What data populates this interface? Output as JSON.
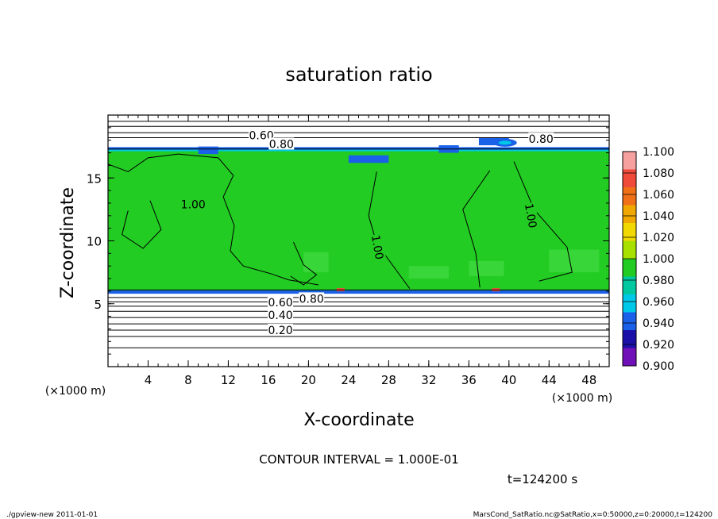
{
  "chart_data": {
    "type": "heatmap",
    "title": "saturation ratio",
    "xlabel": "X-coordinate",
    "ylabel": "Z-coordinate",
    "x_unit": "(×1000 m)",
    "z_unit": "(×1000 m)",
    "xlim": [
      0,
      50
    ],
    "zlim": [
      0,
      20
    ],
    "x_ticks": [
      4,
      8,
      12,
      16,
      20,
      24,
      28,
      32,
      36,
      40,
      44,
      48
    ],
    "z_ticks": [
      5,
      10,
      15
    ],
    "contour_labels": [
      {
        "text": "0.60",
        "x": 15.3,
        "z": 18.4
      },
      {
        "text": "0.80",
        "x": 17.3,
        "z": 17.7
      },
      {
        "text": "0.80",
        "x": 43.2,
        "z": 18.1
      },
      {
        "text": "1.00",
        "x": 8.5,
        "z": 12.9
      },
      {
        "text": "1.00",
        "x": 26.9,
        "z": 9.5
      },
      {
        "text": "1.00",
        "x": 42.2,
        "z": 12.0
      },
      {
        "text": "0.60",
        "x": 17.2,
        "z": 5.1
      },
      {
        "text": "0.80",
        "x": 20.3,
        "z": 5.4
      },
      {
        "text": "0.40",
        "x": 17.2,
        "z": 4.1
      },
      {
        "text": "0.20",
        "x": 17.2,
        "z": 2.9
      }
    ],
    "colorbar": {
      "levels": [
        "1.100",
        "1.080",
        "1.060",
        "1.040",
        "1.020",
        "1.000",
        "0.980",
        "0.960",
        "0.940",
        "0.920",
        "0.900"
      ],
      "colors": [
        "#f7a0a0",
        "#f04a3a",
        "#f07018",
        "#f0a800",
        "#f0d800",
        "#a8e000",
        "#22cc22",
        "#00c8a0",
        "#00c8e8",
        "#1a60e8",
        "#1a10a8",
        "#7010b8"
      ]
    },
    "field_colors": {
      "saturated": "#22cc22",
      "supersaturated": "#3ed83e",
      "edge_blue": "#1a60e8",
      "edge_cyan": "#00c8e8",
      "hotspot": "#f04a3a"
    },
    "layers": {
      "saturated_zmin": 6.0,
      "saturated_zmax": 17.4
    },
    "contour_interval_text": "CONTOUR INTERVAL = 1.000E-01",
    "time_text": "t=124200 s"
  },
  "footer": {
    "left": "./gpview-new   2011-01-01",
    "right": "MarsCond_SatRatio.nc@SatRatio,x=0:50000,z=0:20000,t=124200"
  }
}
